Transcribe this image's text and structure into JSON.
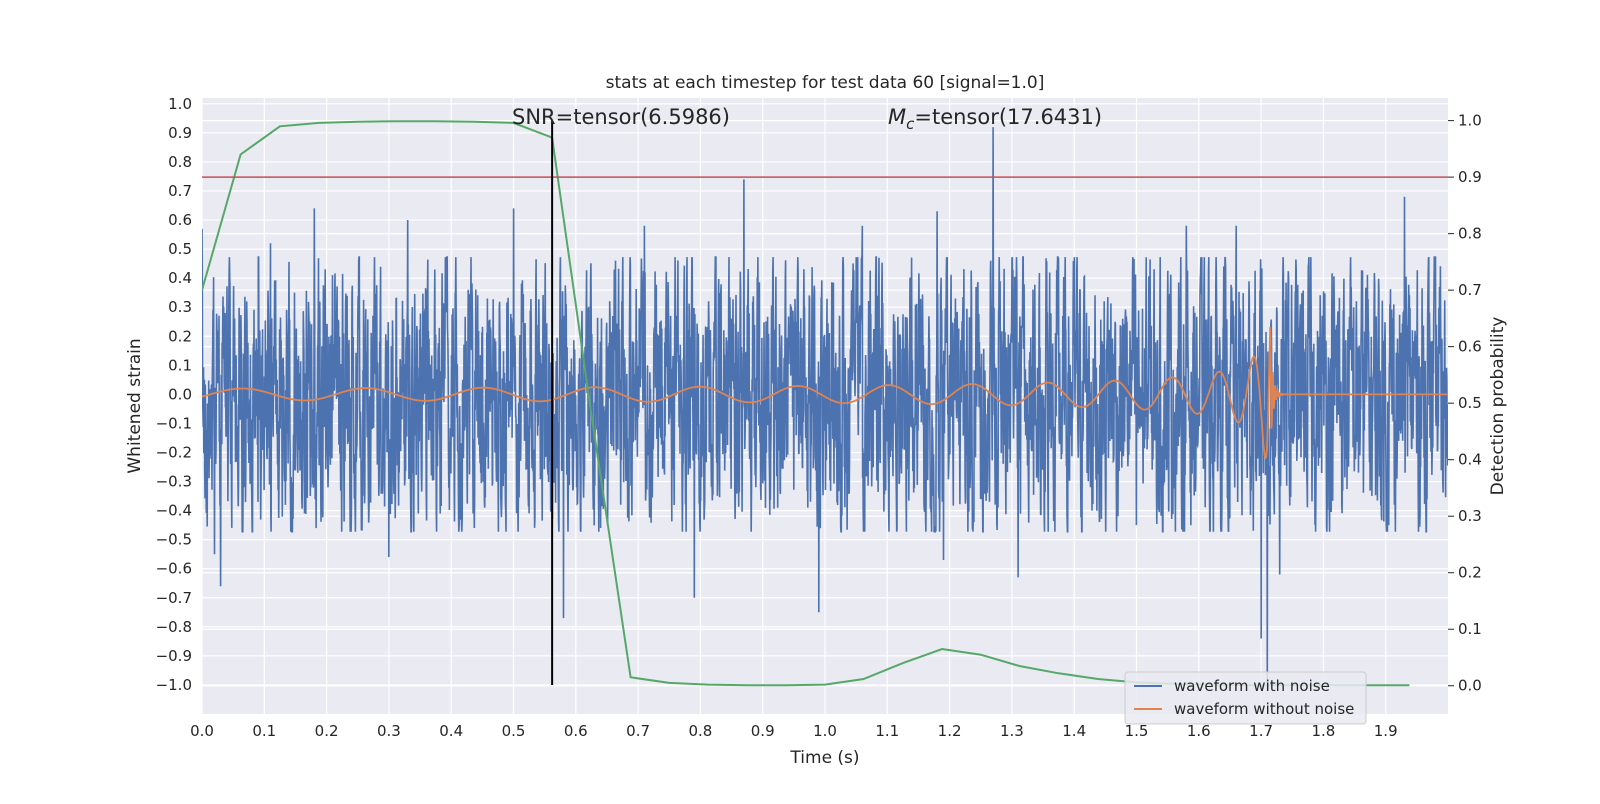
{
  "chart_data": {
    "type": "line",
    "title": "stats at each timestep for test data 60 [signal=1.0]",
    "xlabel": "Time (s)",
    "ylabel_left": "Whitened strain",
    "ylabel_right": "Detection probability",
    "xlim": [
      0.0,
      2.0
    ],
    "ylim_left": [
      -1.1,
      1.02
    ],
    "ylim_right": [
      -0.05,
      1.04
    ],
    "x_ticks": [
      "0.0",
      "0.1",
      "0.2",
      "0.3",
      "0.4",
      "0.5",
      "0.6",
      "0.7",
      "0.8",
      "0.9",
      "1.0",
      "1.1",
      "1.2",
      "1.3",
      "1.4",
      "1.5",
      "1.6",
      "1.7",
      "1.8",
      "1.9"
    ],
    "y_ticks_left": [
      "1.0",
      "0.9",
      "0.8",
      "0.7",
      "0.6",
      "0.5",
      "0.4",
      "0.3",
      "0.2",
      "0.1",
      "0.0",
      "−0.1",
      "−0.2",
      "−0.3",
      "−0.4",
      "−0.5",
      "−0.6",
      "−0.7",
      "−0.8",
      "−0.9",
      "−1.0"
    ],
    "y_ticks_right": [
      "1.0",
      "0.9",
      "0.8",
      "0.7",
      "0.6",
      "0.5",
      "0.4",
      "0.3",
      "0.2",
      "0.1",
      "0.0"
    ],
    "grid": true,
    "legend_position": "lower-right",
    "annotations": {
      "snr_text": "SNR=tensor(6.5986)",
      "mc_symbol": "M",
      "mc_subscript": "c",
      "mc_value": "=tensor(17.6431)"
    },
    "threshold": {
      "axis": "right",
      "value": 0.9,
      "color": "#c44e52"
    },
    "event_time": {
      "x": 0.562,
      "color": "#000000"
    },
    "series": [
      {
        "name": "waveform with noise",
        "color": "#4c72b0",
        "axis": "left",
        "kind": "noise",
        "x_range": [
          0.0,
          2.0
        ],
        "typical_range": [
          -0.45,
          0.45
        ],
        "spikes": [
          [
            0.0,
            0.57
          ],
          [
            0.02,
            -0.55
          ],
          [
            0.03,
            -0.66
          ],
          [
            0.09,
            -0.37
          ],
          [
            0.11,
            0.52
          ],
          [
            0.18,
            0.64
          ],
          [
            0.3,
            -0.56
          ],
          [
            0.33,
            0.6
          ],
          [
            0.5,
            0.64
          ],
          [
            0.58,
            -0.77
          ],
          [
            0.64,
            -0.46
          ],
          [
            0.71,
            0.58
          ],
          [
            0.79,
            -0.7
          ],
          [
            0.87,
            0.74
          ],
          [
            0.99,
            -0.75
          ],
          [
            1.06,
            0.58
          ],
          [
            1.18,
            0.63
          ],
          [
            1.19,
            -0.57
          ],
          [
            1.27,
            0.92
          ],
          [
            1.31,
            -0.63
          ],
          [
            1.5,
            0.74
          ],
          [
            1.5,
            -0.45
          ],
          [
            1.58,
            0.58
          ],
          [
            1.66,
            0.58
          ],
          [
            1.7,
            -0.84
          ],
          [
            1.71,
            -1.02
          ],
          [
            1.73,
            -0.62
          ],
          [
            1.93,
            0.68
          ]
        ]
      },
      {
        "name": "waveform without noise",
        "color": "#dd8452",
        "axis": "left",
        "kind": "chirp",
        "merger_time": 1.715,
        "amplitude_start": 0.02,
        "amplitude_peak": 0.26
      },
      {
        "name": "",
        "color": "#55a868",
        "axis": "right",
        "kind": "probability",
        "x": [
          0.0,
          0.062,
          0.125,
          0.188,
          0.25,
          0.312,
          0.375,
          0.438,
          0.5,
          0.562,
          0.625,
          0.688,
          0.75,
          0.812,
          0.875,
          0.938,
          1.0,
          1.062,
          1.125,
          1.188,
          1.25,
          1.312,
          1.375,
          1.438,
          1.5,
          1.562,
          1.625,
          1.688,
          1.75,
          1.812,
          1.875,
          1.938
        ],
        "values": [
          0.7,
          0.94,
          0.99,
          0.996,
          0.998,
          0.999,
          0.999,
          0.998,
          0.996,
          0.97,
          0.48,
          0.015,
          0.005,
          0.002,
          0.001,
          0.001,
          0.002,
          0.012,
          0.04,
          0.065,
          0.055,
          0.035,
          0.022,
          0.012,
          0.006,
          0.003,
          0.002,
          0.001,
          0.001,
          0.001,
          0.001,
          0.001
        ]
      }
    ]
  }
}
